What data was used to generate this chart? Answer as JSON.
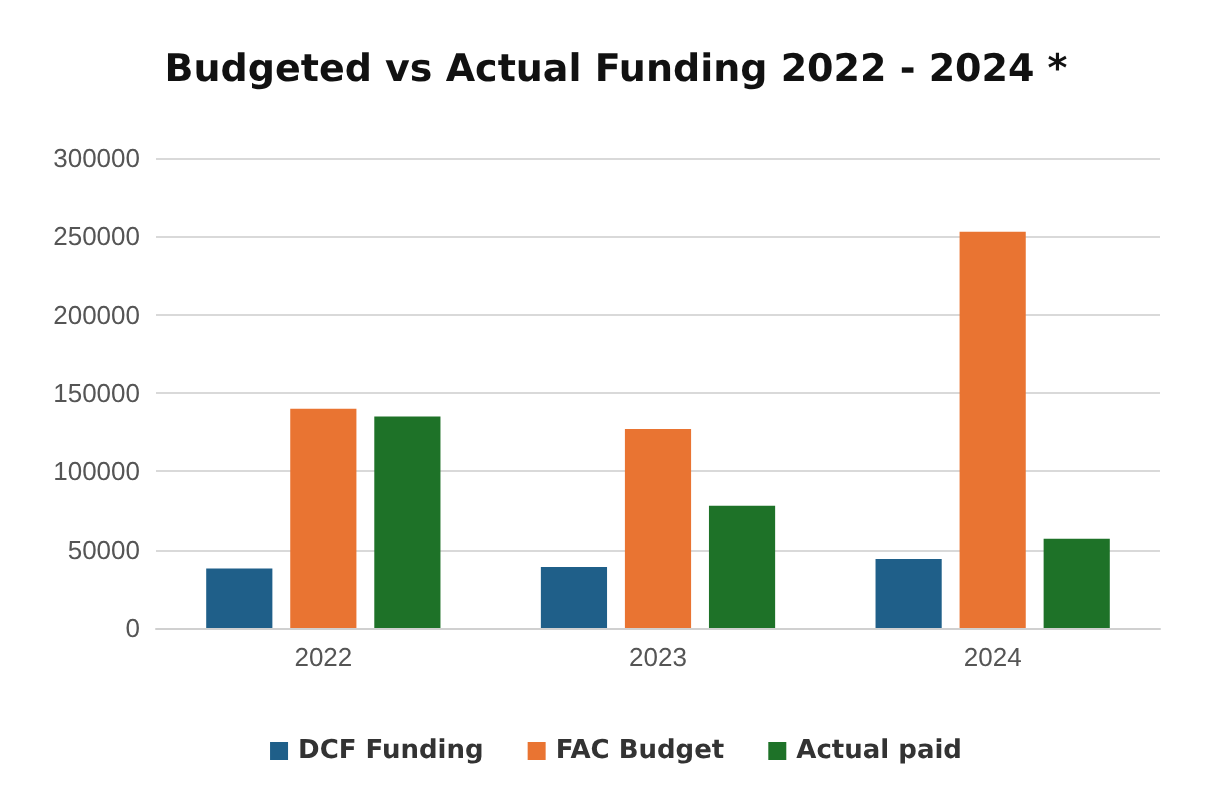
{
  "chart_data": {
    "type": "bar",
    "title": "Budgeted vs Actual Funding 2022 - 2024 *",
    "categories": [
      "2022",
      "2023",
      "2024"
    ],
    "series": [
      {
        "name": "DCF Funding",
        "color": "#1f5f89",
        "values": [
          38000,
          39000,
          44000
        ]
      },
      {
        "name": "FAC Budget",
        "color": "#e97432",
        "values": [
          140000,
          127000,
          253000
        ]
      },
      {
        "name": "Actual paid",
        "color": "#1e7228",
        "values": [
          135000,
          78000,
          57000
        ]
      }
    ],
    "ylim": [
      0,
      300000
    ],
    "yticks": [
      0,
      50000,
      100000,
      150000,
      200000,
      250000,
      300000
    ],
    "grid": "y",
    "legend": "bottom"
  }
}
